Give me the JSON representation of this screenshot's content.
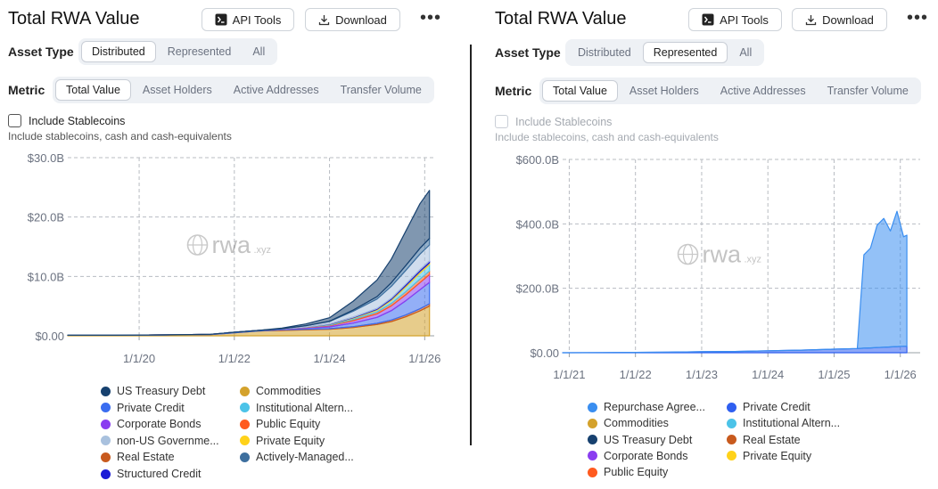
{
  "left": {
    "title": "Total RWA Value",
    "api_tools": "API Tools",
    "download": "Download",
    "more": "•••",
    "asset_type_label": "Asset Type",
    "asset_types": [
      "Distributed",
      "Represented",
      "All"
    ],
    "asset_type_active": 0,
    "metric_label": "Metric",
    "metrics": [
      "Total Value",
      "Asset Holders",
      "Active Addresses",
      "Transfer Volume"
    ],
    "metric_active": 0,
    "stablecoin_label": "Include Stablecoins",
    "stablecoin_sub": "Include stablecoins, cash and cash-equivalents",
    "watermark": "rwa",
    "watermark_suffix": ".xyz",
    "legend": [
      {
        "label": "US Treasury Debt",
        "color": "#17416f"
      },
      {
        "label": "Commodities",
        "color": "#d4a22c"
      },
      {
        "label": "Private Credit",
        "color": "#3a6df0"
      },
      {
        "label": "Institutional Altern...",
        "color": "#4cc3e8"
      },
      {
        "label": "Corporate Bonds",
        "color": "#8a3df0"
      },
      {
        "label": "Public Equity",
        "color": "#ff5a1f"
      },
      {
        "label": "non-US Governme...",
        "color": "#a9c1de"
      },
      {
        "label": "Private Equity",
        "color": "#ffd21a"
      },
      {
        "label": "Real Estate",
        "color": "#c85a1e"
      },
      {
        "label": "Actively-Managed...",
        "color": "#3d6f9e"
      },
      {
        "label": "Structured Credit",
        "color": "#1a1ad6"
      }
    ]
  },
  "right": {
    "title": "Total RWA Value",
    "api_tools": "API Tools",
    "download": "Download",
    "more": "•••",
    "asset_type_label": "Asset Type",
    "asset_types": [
      "Distributed",
      "Represented",
      "All"
    ],
    "asset_type_active": 1,
    "metric_label": "Metric",
    "metrics": [
      "Total Value",
      "Asset Holders",
      "Active Addresses",
      "Transfer Volume"
    ],
    "metric_active": 0,
    "stablecoin_label": "Include Stablecoins",
    "stablecoin_sub": "Include stablecoins, cash and cash-equivalents",
    "watermark": "rwa",
    "watermark_suffix": ".xyz",
    "legend": [
      {
        "label": "Repurchase Agree...",
        "color": "#3a8ef0"
      },
      {
        "label": "Private Credit",
        "color": "#2f5ff0"
      },
      {
        "label": "Commodities",
        "color": "#d4a22c"
      },
      {
        "label": "Institutional Altern...",
        "color": "#4cc3e8"
      },
      {
        "label": "US Treasury Debt",
        "color": "#17416f"
      },
      {
        "label": "Real Estate",
        "color": "#c85a1e"
      },
      {
        "label": "Corporate Bonds",
        "color": "#8a3df0"
      },
      {
        "label": "Private Equity",
        "color": "#ffd21a"
      },
      {
        "label": "Public Equity",
        "color": "#ff5a1f"
      }
    ]
  },
  "chart_data": [
    {
      "type": "area",
      "stacked": true,
      "title": "Total RWA Value",
      "xlabel": "",
      "ylabel": "",
      "ylim": [
        0,
        30
      ],
      "yticks": [
        "$0.00",
        "$10.0B",
        "$20.0B",
        "$30.0B"
      ],
      "xticks": [
        "1/1/20",
        "1/1/22",
        "1/1/24",
        "1/1/26"
      ],
      "x": [
        2018.5,
        2019.5,
        2020.5,
        2021.5,
        2022.0,
        2022.5,
        2023.0,
        2023.5,
        2024.0,
        2024.5,
        2025.0,
        2025.3,
        2025.6,
        2025.9,
        2026.1
      ],
      "series": [
        {
          "name": "Commodities",
          "color": "#d4a22c",
          "values": [
            0.1,
            0.1,
            0.15,
            0.2,
            0.5,
            0.8,
            0.9,
            1.0,
            1.1,
            1.4,
            1.9,
            2.4,
            3.2,
            4.2,
            5.0
          ]
        },
        {
          "name": "Real Estate",
          "color": "#c85a1e",
          "values": [
            0,
            0,
            0,
            0,
            0,
            0,
            0.1,
            0.1,
            0.1,
            0.15,
            0.2,
            0.25,
            0.3,
            0.35,
            0.4
          ]
        },
        {
          "name": "Private Credit",
          "color": "#3a6df0",
          "values": [
            0,
            0,
            0,
            0.05,
            0.1,
            0.1,
            0.1,
            0.2,
            0.3,
            0.6,
            1.0,
            1.6,
            2.4,
            3.2,
            3.6
          ]
        },
        {
          "name": "Corporate Bonds",
          "color": "#8a3df0",
          "values": [
            0,
            0,
            0,
            0,
            0,
            0,
            0.05,
            0.1,
            0.2,
            0.4,
            0.6,
            0.8,
            1.0,
            1.2,
            1.3
          ]
        },
        {
          "name": "Public Equity",
          "color": "#ff5a1f",
          "values": [
            0,
            0,
            0,
            0,
            0,
            0,
            0,
            0.05,
            0.1,
            0.2,
            0.3,
            0.4,
            0.5,
            0.6,
            0.6
          ]
        },
        {
          "name": "Institutional Altern...",
          "color": "#4cc3e8",
          "values": [
            0,
            0,
            0,
            0,
            0,
            0,
            0,
            0.05,
            0.1,
            0.2,
            0.3,
            0.5,
            0.8,
            1.0,
            1.1
          ]
        },
        {
          "name": "Private Equity",
          "color": "#ffd21a",
          "values": [
            0,
            0,
            0,
            0,
            0,
            0,
            0,
            0,
            0.05,
            0.1,
            0.15,
            0.2,
            0.25,
            0.3,
            0.3
          ]
        },
        {
          "name": "Structured Credit",
          "color": "#1a1ad6",
          "values": [
            0,
            0,
            0,
            0,
            0,
            0,
            0,
            0,
            0.05,
            0.1,
            0.15,
            0.2,
            0.25,
            0.3,
            0.3
          ]
        },
        {
          "name": "non-US Governme...",
          "color": "#a9c1de",
          "values": [
            0,
            0,
            0,
            0,
            0,
            0,
            0.05,
            0.2,
            0.4,
            1.0,
            1.6,
            2.0,
            2.3,
            2.6,
            2.7
          ]
        },
        {
          "name": "Actively-Managed...",
          "color": "#3d6f9e",
          "values": [
            0,
            0,
            0,
            0,
            0,
            0,
            0,
            0,
            0.05,
            0.2,
            0.4,
            0.6,
            0.8,
            1.0,
            1.1
          ]
        },
        {
          "name": "US Treasury Debt",
          "color": "#17416f",
          "values": [
            0,
            0,
            0,
            0,
            0,
            0,
            0.1,
            0.3,
            0.6,
            1.5,
            2.8,
            4.0,
            5.8,
            7.5,
            8.1
          ]
        }
      ]
    },
    {
      "type": "area",
      "stacked": true,
      "title": "Total RWA Value",
      "xlabel": "",
      "ylabel": "",
      "ylim": [
        0,
        600
      ],
      "yticks": [
        "$0.00",
        "$200.0B",
        "$400.0B",
        "$600.0B"
      ],
      "xticks": [
        "1/1/21",
        "1/1/22",
        "1/1/23",
        "1/1/24",
        "1/1/25",
        "1/1/26"
      ],
      "x": [
        2020.9,
        2021.5,
        2022.0,
        2022.5,
        2023.0,
        2023.5,
        2024.0,
        2024.5,
        2025.0,
        2025.35,
        2025.45,
        2025.55,
        2025.65,
        2025.75,
        2025.85,
        2025.95,
        2026.05,
        2026.1
      ],
      "series": [
        {
          "name": "Private Credit",
          "color": "#2f5ff0",
          "values": [
            0,
            0.5,
            1,
            2,
            3,
            4,
            6,
            8,
            11,
            13,
            14,
            15,
            16,
            17,
            18,
            19,
            20,
            20
          ]
        },
        {
          "name": "Repurchase Agree...",
          "color": "#3a8ef0",
          "values": [
            0,
            0,
            0,
            0,
            0,
            0,
            0,
            0,
            0,
            0,
            290,
            310,
            380,
            400,
            360,
            420,
            340,
            345
          ]
        }
      ]
    }
  ]
}
